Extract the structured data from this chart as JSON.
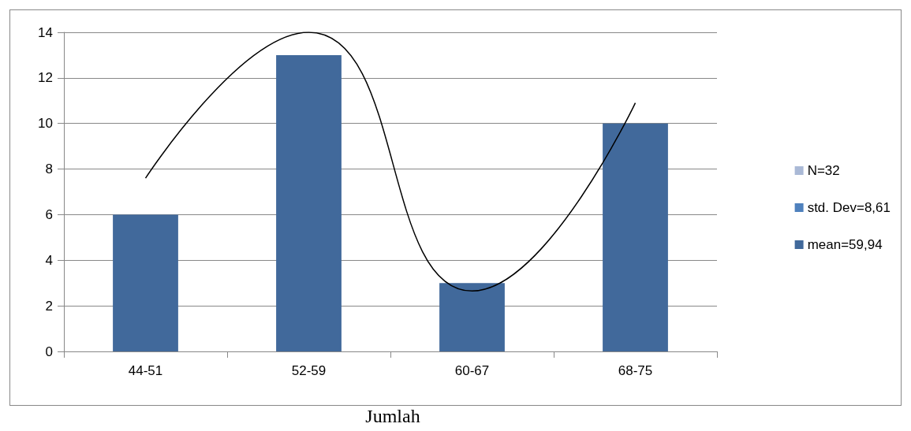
{
  "chart_data": {
    "type": "bar",
    "xlabel": "Jumlah",
    "categories": [
      "44-51",
      "52-59",
      "60-67",
      "68-75"
    ],
    "series": [
      {
        "name": "N=32",
        "color": "#aab9d6",
        "values": [
          null,
          null,
          null,
          null
        ]
      },
      {
        "name": "std. Dev=8,61",
        "color": "#4f81bd",
        "values": [
          null,
          null,
          null,
          null
        ]
      },
      {
        "name": "mean=59,94",
        "color": "#41699b",
        "values": [
          6,
          13,
          3,
          10
        ]
      },
      {
        "type": "line",
        "color": "#000000",
        "marker": "none",
        "values": [
          7.6,
          14.0,
          2.65,
          10.9
        ]
      }
    ],
    "ylim": [
      0,
      14
    ],
    "yticks": [
      0,
      2,
      4,
      6,
      8,
      10,
      12,
      14
    ],
    "grid": "y",
    "legend": "right"
  }
}
